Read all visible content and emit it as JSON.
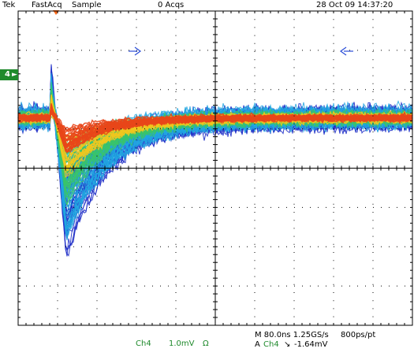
{
  "header": {
    "brand": "Tek",
    "mode": "FastAcq",
    "acquisition": "Sample",
    "acq_count": "0 Acqs",
    "datetime": "28 Oct 09 14:37:20"
  },
  "channel_marker": {
    "number": "4",
    "arrow": "►"
  },
  "readouts": {
    "channel": "Ch4",
    "volts_per_div": "1.0mV",
    "coupling": "Ω",
    "horizontal": "M 80.0ns 1.25GS/s",
    "resolution": "800ps/pt",
    "trigger_source_prefix": "A",
    "trigger_channel": "Ch4",
    "trigger_slope": "↘",
    "trigger_level": "-1.64mV"
  },
  "colors": {
    "grid": "#000000",
    "channel_color": "#1f8a2c",
    "trigger_marker": "#ff6a1a",
    "cursor_arrow": "#2a4dd8",
    "persistence_hot": "#e8461a",
    "persistence_warm": "#f0c61e",
    "persistence_mid": "#3ac46a",
    "persistence_cool": "#21a6e0",
    "persistence_cold": "#2030c8"
  }
}
